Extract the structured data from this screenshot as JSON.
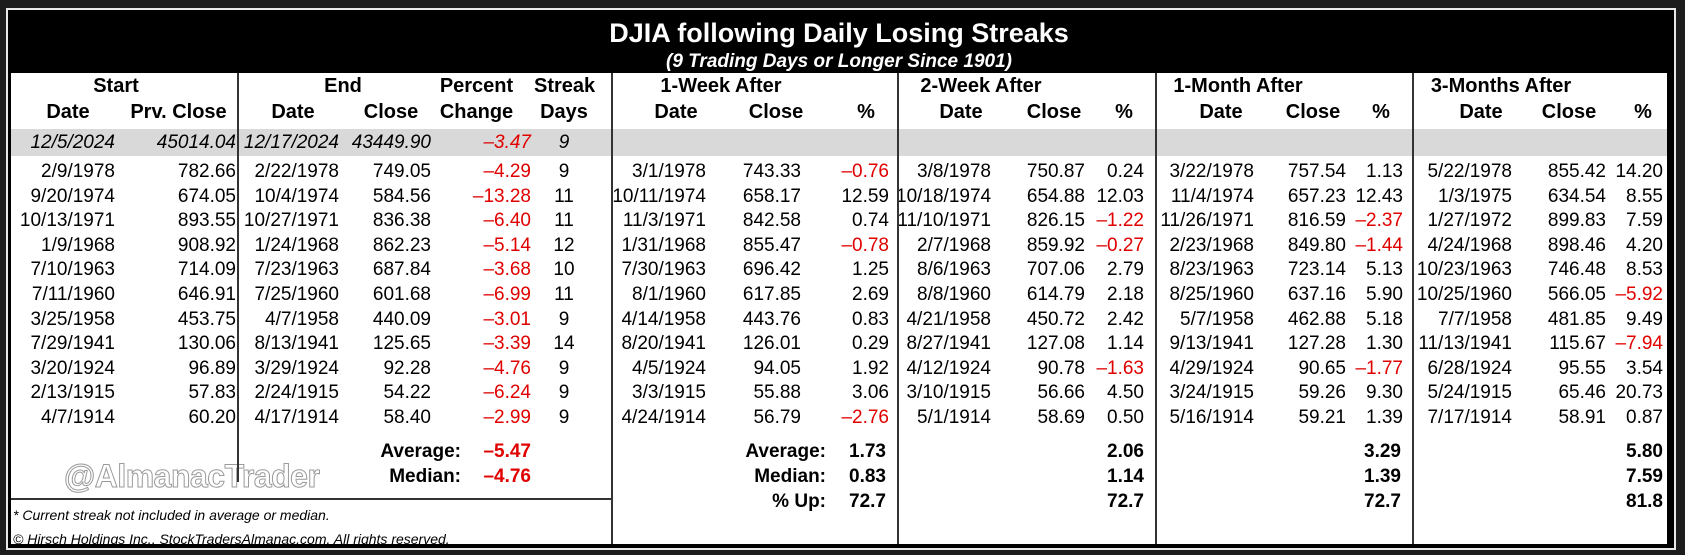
{
  "title": "DJIA following Daily Losing Streaks",
  "subtitle": "(9 Trading Days or Longer Since 1901)",
  "groups": {
    "start": "Start",
    "end": "End",
    "percent": "Percent",
    "streak": "Streak",
    "w1": "1-Week After",
    "w2": "2-Week After",
    "m1": "1-Month After",
    "m3": "3-Months After"
  },
  "subheaders": {
    "date": "Date",
    "prv_close": "Prv. Close",
    "close": "Close",
    "change": "Change",
    "days": "Days",
    "pct": "%"
  },
  "current": [
    "12/5/2024",
    "45014.04",
    "12/17/2024",
    "43449.90",
    "–3.47",
    "9"
  ],
  "rows": [
    [
      "2/9/1978",
      "782.66",
      "2/22/1978",
      "749.05",
      "–4.29",
      "9",
      "3/1/1978",
      "743.33",
      "–0.76",
      "3/8/1978",
      "750.87",
      "0.24",
      "3/22/1978",
      "757.54",
      "1.13",
      "5/22/1978",
      "855.42",
      "14.20"
    ],
    [
      "9/20/1974",
      "674.05",
      "10/4/1974",
      "584.56",
      "–13.28",
      "11",
      "10/11/1974",
      "658.17",
      "12.59",
      "10/18/1974",
      "654.88",
      "12.03",
      "11/4/1974",
      "657.23",
      "12.43",
      "1/3/1975",
      "634.54",
      "8.55"
    ],
    [
      "10/13/1971",
      "893.55",
      "10/27/1971",
      "836.38",
      "–6.40",
      "11",
      "11/3/1971",
      "842.58",
      "0.74",
      "11/10/1971",
      "826.15",
      "–1.22",
      "11/26/1971",
      "816.59",
      "–2.37",
      "1/27/1972",
      "899.83",
      "7.59"
    ],
    [
      "1/9/1968",
      "908.92",
      "1/24/1968",
      "862.23",
      "–5.14",
      "12",
      "1/31/1968",
      "855.47",
      "–0.78",
      "2/7/1968",
      "859.92",
      "–0.27",
      "2/23/1968",
      "849.80",
      "–1.44",
      "4/24/1968",
      "898.46",
      "4.20"
    ],
    [
      "7/10/1963",
      "714.09",
      "7/23/1963",
      "687.84",
      "–3.68",
      "10",
      "7/30/1963",
      "696.42",
      "1.25",
      "8/6/1963",
      "707.06",
      "2.79",
      "8/23/1963",
      "723.14",
      "5.13",
      "10/23/1963",
      "746.48",
      "8.53"
    ],
    [
      "7/11/1960",
      "646.91",
      "7/25/1960",
      "601.68",
      "–6.99",
      "11",
      "8/1/1960",
      "617.85",
      "2.69",
      "8/8/1960",
      "614.79",
      "2.18",
      "8/25/1960",
      "637.16",
      "5.90",
      "10/25/1960",
      "566.05",
      "–5.92"
    ],
    [
      "3/25/1958",
      "453.75",
      "4/7/1958",
      "440.09",
      "–3.01",
      "9",
      "4/14/1958",
      "443.76",
      "0.83",
      "4/21/1958",
      "450.72",
      "2.42",
      "5/7/1958",
      "462.88",
      "5.18",
      "7/7/1958",
      "481.85",
      "9.49"
    ],
    [
      "7/29/1941",
      "130.06",
      "8/13/1941",
      "125.65",
      "–3.39",
      "14",
      "8/20/1941",
      "126.01",
      "0.29",
      "8/27/1941",
      "127.08",
      "1.14",
      "9/13/1941",
      "127.28",
      "1.30",
      "11/13/1941",
      "115.67",
      "–7.94"
    ],
    [
      "3/20/1924",
      "96.89",
      "3/29/1924",
      "92.28",
      "–4.76",
      "9",
      "4/5/1924",
      "94.05",
      "1.92",
      "4/12/1924",
      "90.78",
      "–1.63",
      "4/29/1924",
      "90.65",
      "–1.77",
      "6/28/1924",
      "95.55",
      "3.54"
    ],
    [
      "2/13/1915",
      "57.83",
      "2/24/1915",
      "54.22",
      "–6.24",
      "9",
      "3/3/1915",
      "55.88",
      "3.06",
      "3/10/1915",
      "56.66",
      "4.50",
      "3/24/1915",
      "59.26",
      "9.30",
      "5/24/1915",
      "65.46",
      "20.73"
    ],
    [
      "4/7/1914",
      "60.20",
      "4/17/1914",
      "58.40",
      "–2.99",
      "9",
      "4/24/1914",
      "56.79",
      "–2.76",
      "5/1/1914",
      "58.69",
      "0.50",
      "5/16/1914",
      "59.21",
      "1.39",
      "7/17/1914",
      "58.91",
      "0.87"
    ]
  ],
  "summary": {
    "average_label": "Average:",
    "median_label": "Median:",
    "up_label": "% Up:",
    "average": {
      "change": "–5.47",
      "w1": "1.73",
      "w2": "2.06",
      "m1": "3.29",
      "m3": "5.80"
    },
    "median": {
      "change": "–4.76",
      "w1": "0.83",
      "w2": "1.14",
      "m1": "1.39",
      "m3": "7.59"
    },
    "up": {
      "w1": "72.7",
      "w2": "72.7",
      "m1": "72.7",
      "m3": "81.8"
    }
  },
  "watermark": "@AlmanacTrader",
  "footnote": "* Current streak not included in average or median.",
  "copyright": "© Hirsch Holdings Inc., StockTradersAlmanac.com. All rights reserved.",
  "colors": {
    "negative": "#e00000",
    "highlight_band": "#d9d9d9",
    "title_bar": "#000000"
  }
}
